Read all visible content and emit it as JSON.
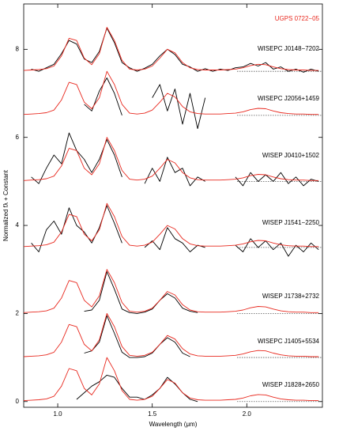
{
  "chart_data": {
    "type": "line",
    "xlabel": "Wavelength (μm)",
    "ylabel": "Normalized fλ + Constant",
    "xlim": [
      0.82,
      2.4
    ],
    "ylim": [
      -0.13,
      9.03
    ],
    "xticks": [
      {
        "value": 1,
        "label": "1.0"
      },
      1.5,
      {
        "value": 2,
        "label": "2.0"
      }
    ],
    "yticks": [
      0,
      2,
      4,
      6,
      8
    ],
    "x": [
      0.82,
      0.86,
      0.9,
      0.94,
      0.98,
      1.02,
      1.06,
      1.1,
      1.14,
      1.18,
      1.22,
      1.26,
      1.3,
      1.34,
      1.38,
      1.42,
      1.46,
      1.5,
      1.54,
      1.58,
      1.62,
      1.66,
      1.7,
      1.74,
      1.78,
      1.82,
      1.86,
      1.9,
      1.94,
      1.98,
      2.02,
      2.06,
      2.1,
      2.14,
      2.18,
      2.22,
      2.26,
      2.3,
      2.34,
      2.38
    ],
    "model": {
      "name": "UGPS 0722−05",
      "color": "#e8281e",
      "curves": [
        [
          7.52,
          7.53,
          7.54,
          7.56,
          7.62,
          7.85,
          8.25,
          8.2,
          7.8,
          7.65,
          7.9,
          8.5,
          8.2,
          7.75,
          7.55,
          7.53,
          7.55,
          7.62,
          7.8,
          8.0,
          7.92,
          7.7,
          7.58,
          7.54,
          7.53,
          7.53,
          7.53,
          7.54,
          7.55,
          7.58,
          7.63,
          7.66,
          7.65,
          7.6,
          7.56,
          7.54,
          7.53,
          7.53,
          7.52,
          7.52
        ],
        [
          6.52,
          6.53,
          6.54,
          6.56,
          6.62,
          6.85,
          7.25,
          7.2,
          6.8,
          6.65,
          6.9,
          7.5,
          7.2,
          6.75,
          6.55,
          6.53,
          6.55,
          6.62,
          6.8,
          7.0,
          6.92,
          6.7,
          6.58,
          6.54,
          6.53,
          6.53,
          6.53,
          6.54,
          6.55,
          6.58,
          6.63,
          6.66,
          6.65,
          6.6,
          6.56,
          6.54,
          6.53,
          6.53,
          6.52,
          6.52
        ],
        [
          5.02,
          5.03,
          5.04,
          5.06,
          5.12,
          5.35,
          5.75,
          5.7,
          5.3,
          5.15,
          5.4,
          6.0,
          5.7,
          5.25,
          5.05,
          5.03,
          5.05,
          5.12,
          5.3,
          5.5,
          5.42,
          5.2,
          5.08,
          5.04,
          5.03,
          5.03,
          5.03,
          5.04,
          5.05,
          5.08,
          5.13,
          5.16,
          5.15,
          5.1,
          5.06,
          5.04,
          5.03,
          5.03,
          5.02,
          5.02
        ],
        [
          3.52,
          3.53,
          3.54,
          3.56,
          3.62,
          3.85,
          4.25,
          4.2,
          3.8,
          3.65,
          3.9,
          4.5,
          4.2,
          3.75,
          3.55,
          3.53,
          3.55,
          3.62,
          3.8,
          4.0,
          3.92,
          3.7,
          3.58,
          3.54,
          3.53,
          3.53,
          3.53,
          3.54,
          3.55,
          3.58,
          3.63,
          3.66,
          3.65,
          3.6,
          3.56,
          3.54,
          3.53,
          3.53,
          3.52,
          3.52
        ],
        [
          2.02,
          2.03,
          2.04,
          2.06,
          2.12,
          2.35,
          2.75,
          2.7,
          2.3,
          2.15,
          2.4,
          3.0,
          2.7,
          2.25,
          2.05,
          2.03,
          2.05,
          2.12,
          2.3,
          2.5,
          2.42,
          2.2,
          2.08,
          2.04,
          2.03,
          2.03,
          2.03,
          2.04,
          2.05,
          2.08,
          2.13,
          2.16,
          2.15,
          2.1,
          2.06,
          2.04,
          2.03,
          2.03,
          2.02,
          2.02
        ],
        [
          1.02,
          1.03,
          1.04,
          1.06,
          1.12,
          1.35,
          1.75,
          1.7,
          1.3,
          1.15,
          1.4,
          2.0,
          1.7,
          1.25,
          1.05,
          1.03,
          1.05,
          1.12,
          1.3,
          1.5,
          1.42,
          1.2,
          1.08,
          1.04,
          1.03,
          1.03,
          1.03,
          1.04,
          1.05,
          1.08,
          1.13,
          1.16,
          1.15,
          1.1,
          1.06,
          1.04,
          1.03,
          1.03,
          1.02,
          1.02
        ],
        [
          0.02,
          0.03,
          0.04,
          0.06,
          0.12,
          0.35,
          0.75,
          0.7,
          0.3,
          0.15,
          0.4,
          1.0,
          0.7,
          0.25,
          0.05,
          0.03,
          0.05,
          0.12,
          0.3,
          0.5,
          0.42,
          0.2,
          0.08,
          0.04,
          0.03,
          0.03,
          0.03,
          0.04,
          0.05,
          0.08,
          0.13,
          0.16,
          0.15,
          0.1,
          0.06,
          0.04,
          0.03,
          0.03,
          0.02,
          0.02
        ]
      ]
    },
    "zero_lines": {
      "x_start": 1.95,
      "values": [
        7.5,
        6.5,
        5,
        3.5,
        2,
        1,
        0
      ]
    },
    "series": [
      {
        "name": "WISEPC J0148−7202",
        "color": "#000000",
        "values": [
          null,
          7.55,
          7.5,
          7.58,
          7.66,
          7.9,
          8.2,
          8.12,
          7.78,
          7.7,
          7.95,
          8.48,
          8.15,
          7.7,
          7.58,
          7.5,
          7.57,
          7.66,
          7.85,
          8.0,
          7.88,
          7.66,
          7.6,
          7.5,
          7.56,
          7.5,
          7.55,
          7.52,
          7.58,
          7.6,
          7.68,
          7.62,
          7.7,
          7.55,
          7.6,
          7.5,
          7.55,
          7.48,
          7.55,
          7.5
        ]
      },
      {
        "name": "WISEPC J2056+1459",
        "color": "#000000",
        "values": [
          null,
          null,
          null,
          null,
          null,
          null,
          null,
          null,
          6.75,
          6.6,
          7.05,
          7.35,
          7.0,
          6.5,
          null,
          null,
          null,
          6.9,
          7.2,
          6.6,
          7.1,
          6.3,
          7.0,
          6.2,
          6.9,
          null,
          null,
          null,
          null,
          null,
          null,
          null,
          null,
          null,
          null,
          null,
          null,
          null,
          null,
          null
        ]
      },
      {
        "name": "WISEP J0410+1502",
        "color": "#000000",
        "values": [
          null,
          5.1,
          4.95,
          5.3,
          5.6,
          5.4,
          6.1,
          5.7,
          5.5,
          5.2,
          5.5,
          5.95,
          5.6,
          5.1,
          null,
          null,
          4.95,
          5.3,
          5.0,
          5.55,
          5.2,
          5.3,
          4.9,
          5.1,
          5.0,
          null,
          null,
          null,
          5.1,
          4.9,
          5.2,
          5.0,
          5.15,
          5.0,
          5.2,
          4.95,
          5.1,
          4.9,
          5.05,
          5.0
        ]
      },
      {
        "name": "WISEP J1541−2250",
        "color": "#000000",
        "values": [
          null,
          3.6,
          3.4,
          3.9,
          4.1,
          3.8,
          4.4,
          4.0,
          3.85,
          3.6,
          3.95,
          4.45,
          4.05,
          3.6,
          null,
          null,
          3.5,
          3.65,
          3.45,
          3.95,
          3.7,
          3.6,
          3.4,
          3.55,
          3.5,
          null,
          null,
          null,
          3.55,
          3.4,
          3.7,
          3.5,
          3.65,
          3.45,
          3.6,
          3.3,
          3.55,
          3.4,
          3.6,
          3.45
        ]
      },
      {
        "name": "WISEP J1738+2732",
        "color": "#000000",
        "values": [
          null,
          null,
          null,
          null,
          null,
          null,
          null,
          null,
          2.05,
          2.08,
          2.3,
          2.95,
          2.55,
          2.1,
          2.02,
          2.0,
          2.03,
          2.1,
          2.3,
          2.45,
          2.35,
          2.12,
          2.05,
          2.02,
          null,
          null,
          null,
          null,
          null,
          null,
          null,
          null,
          null,
          null,
          null,
          null,
          null,
          null,
          null,
          null
        ]
      },
      {
        "name": "WISEPC J1405+5534",
        "color": "#000000",
        "values": [
          null,
          null,
          null,
          null,
          null,
          null,
          null,
          null,
          1.1,
          1.15,
          1.35,
          1.95,
          1.55,
          1.12,
          1.0,
          1.0,
          1.02,
          1.1,
          1.3,
          1.45,
          1.35,
          1.1,
          1.02,
          null,
          null,
          null,
          null,
          null,
          null,
          null,
          null,
          null,
          null,
          null,
          null,
          null,
          null,
          null,
          null,
          null
        ]
      },
      {
        "name": "WISEP J1828+2650",
        "color": "#000000",
        "values": [
          null,
          null,
          null,
          null,
          null,
          null,
          null,
          0.05,
          0.2,
          0.35,
          0.45,
          0.6,
          0.55,
          0.3,
          0.1,
          0.1,
          0.05,
          0.15,
          0.3,
          0.55,
          0.4,
          0.2,
          0.05,
          0.0,
          null,
          null,
          null,
          null,
          null,
          null,
          null,
          null,
          null,
          null,
          null,
          null,
          null,
          null,
          null,
          null
        ]
      }
    ]
  }
}
